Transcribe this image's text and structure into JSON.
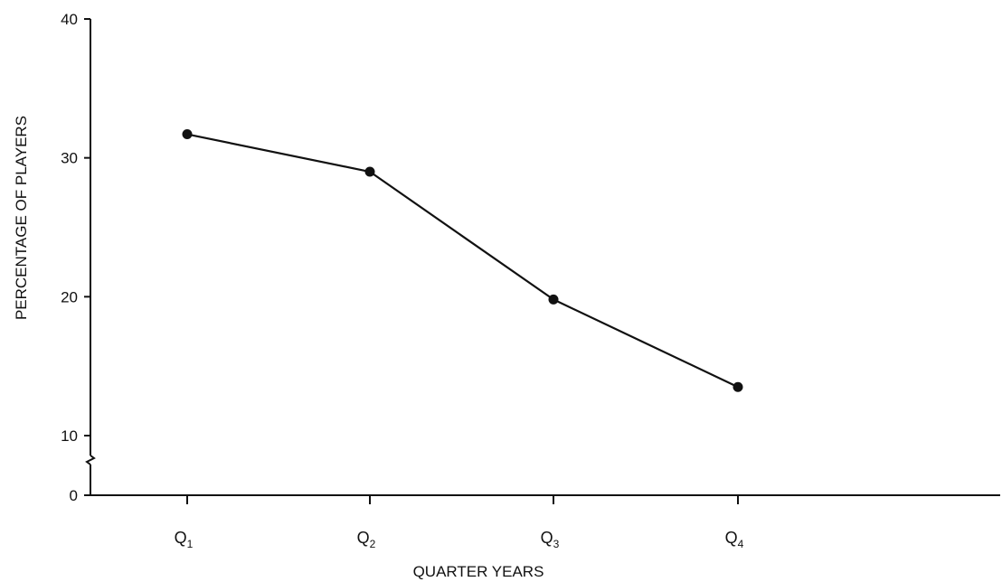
{
  "chart_data": {
    "type": "line",
    "title": "",
    "xlabel": "QUARTER YEARS",
    "ylabel": "PERCENTAGE OF PLAYERS",
    "categories": [
      {
        "main": "Q",
        "sub": "1"
      },
      {
        "main": "Q",
        "sub": "2"
      },
      {
        "main": "Q",
        "sub": "3"
      },
      {
        "main": "Q",
        "sub": "4"
      }
    ],
    "series": [
      {
        "values": [
          31.7,
          29.0,
          19.8,
          13.5
        ]
      }
    ],
    "ylim": [
      0,
      40
    ],
    "y_axis_break": true,
    "yticks": [
      0,
      10,
      20,
      30,
      40
    ],
    "ytick_labels": [
      "0",
      "10",
      "20",
      "30",
      "40"
    ],
    "grid": false,
    "legend": "none",
    "colors": {
      "line": "#111111",
      "axis": "#111111"
    }
  }
}
